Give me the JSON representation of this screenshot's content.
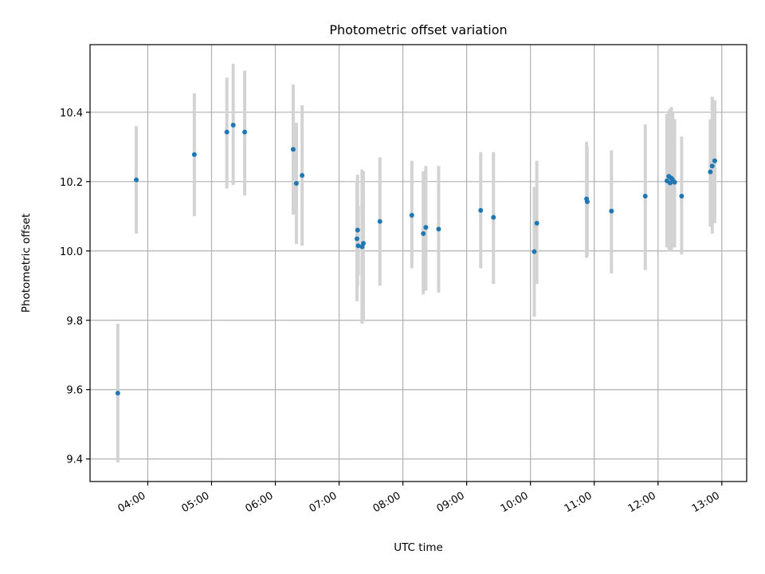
{
  "chart_data": {
    "type": "scatter",
    "title": "Photometric offset variation",
    "xlabel": "UTC time",
    "ylabel": "Photometric offset",
    "x_unit": "UTC hours",
    "xlim": [
      3.095,
      13.39
    ],
    "ylim": [
      9.335,
      10.595
    ],
    "x_ticks": [
      "04:00",
      "05:00",
      "06:00",
      "07:00",
      "08:00",
      "09:00",
      "10:00",
      "11:00",
      "12:00",
      "13:00"
    ],
    "y_ticks": [
      "9.4",
      "9.6",
      "9.8",
      "10.0",
      "10.2",
      "10.4"
    ],
    "grid": true,
    "colors": {
      "points": "#1f77b4",
      "errorbars": "#d3d3d3",
      "grid": "#b0b0b0"
    },
    "points": [
      {
        "x": 3.53,
        "y": 9.59,
        "lo": 9.39,
        "hi": 9.79
      },
      {
        "x": 3.82,
        "y": 10.205,
        "lo": 10.05,
        "hi": 10.36
      },
      {
        "x": 4.73,
        "y": 10.278,
        "lo": 10.1,
        "hi": 10.455
      },
      {
        "x": 5.24,
        "y": 10.343,
        "lo": 10.18,
        "hi": 10.5
      },
      {
        "x": 5.34,
        "y": 10.363,
        "lo": 10.19,
        "hi": 10.54
      },
      {
        "x": 5.52,
        "y": 10.343,
        "lo": 10.16,
        "hi": 10.52
      },
      {
        "x": 6.28,
        "y": 10.293,
        "lo": 10.105,
        "hi": 10.48
      },
      {
        "x": 6.33,
        "y": 10.195,
        "lo": 10.02,
        "hi": 10.37
      },
      {
        "x": 6.42,
        "y": 10.218,
        "lo": 10.015,
        "hi": 10.42
      },
      {
        "x": 7.28,
        "y": 10.035,
        "lo": 9.855,
        "hi": 10.2
      },
      {
        "x": 7.29,
        "y": 10.06,
        "lo": 9.9,
        "hi": 10.22
      },
      {
        "x": 7.3,
        "y": 10.015,
        "lo": 9.93,
        "hi": 10.13
      },
      {
        "x": 7.36,
        "y": 10.012,
        "lo": 9.79,
        "hi": 10.235
      },
      {
        "x": 7.38,
        "y": 10.022,
        "lo": 9.8,
        "hi": 10.23
      },
      {
        "x": 7.64,
        "y": 10.085,
        "lo": 9.9,
        "hi": 10.27
      },
      {
        "x": 8.14,
        "y": 10.103,
        "lo": 9.95,
        "hi": 10.26
      },
      {
        "x": 8.32,
        "y": 10.05,
        "lo": 9.875,
        "hi": 10.23
      },
      {
        "x": 8.36,
        "y": 10.068,
        "lo": 9.885,
        "hi": 10.245
      },
      {
        "x": 8.56,
        "y": 10.063,
        "lo": 9.88,
        "hi": 10.245
      },
      {
        "x": 9.22,
        "y": 10.117,
        "lo": 9.95,
        "hi": 10.285
      },
      {
        "x": 9.42,
        "y": 10.097,
        "lo": 9.905,
        "hi": 10.285
      },
      {
        "x": 10.06,
        "y": 9.998,
        "lo": 9.81,
        "hi": 10.185
      },
      {
        "x": 10.1,
        "y": 10.08,
        "lo": 9.905,
        "hi": 10.26
      },
      {
        "x": 10.88,
        "y": 10.15,
        "lo": 9.98,
        "hi": 10.315
      },
      {
        "x": 10.89,
        "y": 10.142,
        "lo": 9.985,
        "hi": 10.3
      },
      {
        "x": 11.27,
        "y": 10.115,
        "lo": 9.935,
        "hi": 10.29
      },
      {
        "x": 11.8,
        "y": 10.158,
        "lo": 9.945,
        "hi": 10.365
      },
      {
        "x": 12.14,
        "y": 10.202,
        "lo": 10.01,
        "hi": 10.395
      },
      {
        "x": 12.17,
        "y": 10.215,
        "lo": 10.005,
        "hi": 10.405
      },
      {
        "x": 12.19,
        "y": 10.196,
        "lo": 10.0,
        "hi": 10.41
      },
      {
        "x": 12.21,
        "y": 10.21,
        "lo": 10.0,
        "hi": 10.415
      },
      {
        "x": 12.23,
        "y": 10.205,
        "lo": 10.015,
        "hi": 10.4
      },
      {
        "x": 12.26,
        "y": 10.198,
        "lo": 10.01,
        "hi": 10.38
      },
      {
        "x": 12.37,
        "y": 10.158,
        "lo": 9.99,
        "hi": 10.33
      },
      {
        "x": 12.82,
        "y": 10.228,
        "lo": 10.07,
        "hi": 10.38
      },
      {
        "x": 12.85,
        "y": 10.245,
        "lo": 10.05,
        "hi": 10.445
      },
      {
        "x": 12.89,
        "y": 10.26,
        "lo": 10.08,
        "hi": 10.435
      }
    ]
  }
}
